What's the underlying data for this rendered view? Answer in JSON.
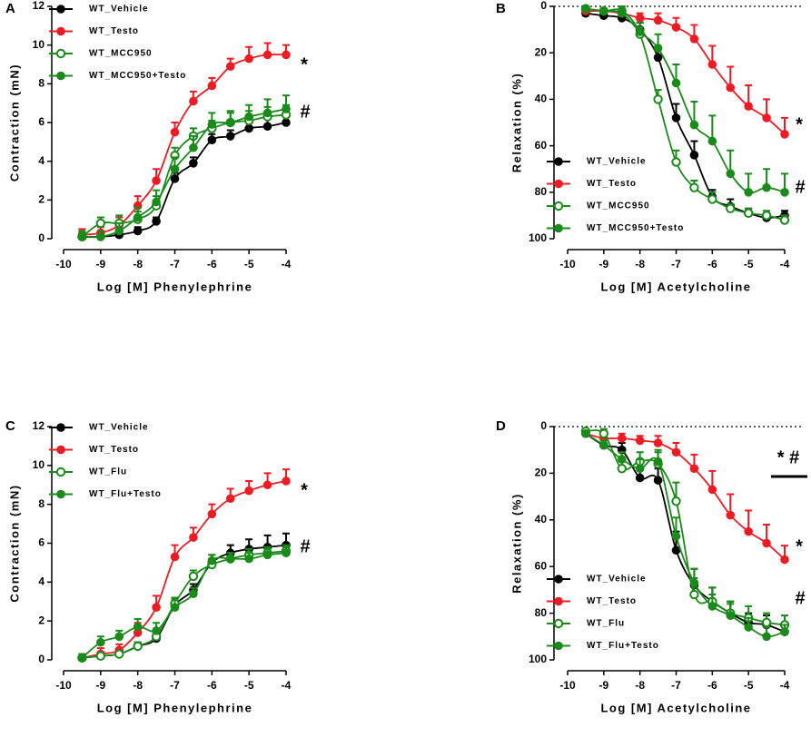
{
  "chart_data": [
    {
      "type": "line",
      "panel": "A",
      "xlabel": "Log [M] Phenylephrine",
      "ylabel": "Contraction (mN)",
      "xlim": [
        -10,
        -4
      ],
      "xticks": [
        -10,
        -9,
        -8,
        -7,
        -6,
        -5,
        -4
      ],
      "ylim": [
        0,
        12
      ],
      "yticks": [
        0,
        2,
        4,
        6,
        8,
        10,
        12
      ],
      "y_inverted": false,
      "x": [
        -9.5,
        -9,
        -8.5,
        -8,
        -7.5,
        -7,
        -6.5,
        -6,
        -5.5,
        -5,
        -4.5,
        -4
      ],
      "series": [
        {
          "name": "WT_Vehicle",
          "color": "#000000",
          "marker": "filled",
          "values": [
            0.1,
            0.1,
            0.2,
            0.4,
            0.9,
            3.1,
            3.9,
            5.1,
            5.3,
            5.7,
            5.8,
            6.0
          ],
          "errors": [
            0.1,
            0.1,
            0.1,
            0.2,
            0.2,
            0.3,
            0.3,
            0.3,
            0.3,
            0.3,
            0.4,
            0.4
          ]
        },
        {
          "name": "WT_Testo",
          "color": "#ed1c24",
          "marker": "filled",
          "values": [
            0.2,
            0.3,
            0.7,
            1.7,
            3.0,
            5.5,
            7.1,
            7.9,
            8.9,
            9.3,
            9.5,
            9.5
          ],
          "errors": [
            0.3,
            0.3,
            0.4,
            0.5,
            0.6,
            0.5,
            0.5,
            0.4,
            0.4,
            0.6,
            0.6,
            0.5
          ]
        },
        {
          "name": "WT_MCC950",
          "color": "#1a8a1a",
          "marker": "open",
          "values": [
            0.1,
            0.8,
            0.8,
            1.0,
            1.7,
            4.3,
            5.3,
            5.7,
            6.0,
            6.1,
            6.3,
            6.4
          ],
          "errors": [
            0.3,
            0.3,
            0.4,
            0.4,
            0.5,
            0.4,
            0.4,
            0.4,
            0.5,
            0.5,
            0.5,
            0.5
          ]
        },
        {
          "name": "WT_MCC950+Testo",
          "color": "#1a8a1a",
          "marker": "filled",
          "values": [
            0.1,
            0.1,
            0.4,
            1.1,
            1.9,
            3.6,
            4.7,
            5.9,
            6.0,
            6.3,
            6.5,
            6.7
          ],
          "errors": [
            0.2,
            0.3,
            0.4,
            0.5,
            0.6,
            0.6,
            0.6,
            0.6,
            0.6,
            0.6,
            0.7,
            0.7
          ]
        }
      ],
      "annotations": [
        "*",
        "#"
      ]
    },
    {
      "type": "line",
      "panel": "B",
      "xlabel": "Log [M] Acetylcholine",
      "ylabel": "Relaxation (%)",
      "xlim": [
        -10,
        -4
      ],
      "xticks": [
        -10,
        -9,
        -8,
        -7,
        -6,
        -5,
        -4
      ],
      "ylim": [
        0,
        100
      ],
      "yticks": [
        0,
        20,
        40,
        60,
        80,
        100
      ],
      "y_inverted": true,
      "x": [
        -9.5,
        -9,
        -8.5,
        -8,
        -7.5,
        -7,
        -6.5,
        -6,
        -5.5,
        -5,
        -4.5,
        -4
      ],
      "series": [
        {
          "name": "WT_Vehicle",
          "color": "#000000",
          "marker": "filled",
          "values": [
            3,
            4,
            5,
            10,
            22,
            48,
            64,
            82,
            86,
            89,
            91,
            90
          ],
          "errors": [
            1,
            1,
            2,
            3,
            4,
            6,
            6,
            3,
            3,
            2,
            2,
            2
          ]
        },
        {
          "name": "WT_Testo",
          "color": "#ed1c24",
          "marker": "filled",
          "values": [
            2,
            2,
            3,
            5,
            6,
            9,
            14,
            25,
            35,
            43,
            48,
            55
          ],
          "errors": [
            1,
            1,
            2,
            2,
            3,
            4,
            6,
            8,
            9,
            9,
            8,
            7
          ]
        },
        {
          "name": "WT_MCC950",
          "color": "#1a8a1a",
          "marker": "open",
          "values": [
            1,
            2,
            2,
            12,
            40,
            67,
            78,
            83,
            87,
            89,
            90,
            92
          ],
          "errors": [
            1,
            1,
            2,
            3,
            4,
            5,
            3,
            3,
            2,
            2,
            2,
            2
          ]
        },
        {
          "name": "WT_MCC950+Testo",
          "color": "#1a8a1a",
          "marker": "filled",
          "values": [
            1,
            2,
            3,
            11,
            18,
            33,
            51,
            58,
            72,
            80,
            78,
            80
          ],
          "errors": [
            1,
            1,
            2,
            4,
            6,
            8,
            10,
            11,
            10,
            8,
            8,
            8
          ]
        }
      ],
      "annotations": [
        "*",
        "#"
      ]
    },
    {
      "type": "line",
      "panel": "C",
      "xlabel": "Log [M] Phenylephrine",
      "ylabel": "Contraction (mN)",
      "xlim": [
        -10,
        -4
      ],
      "xticks": [
        -10,
        -9,
        -8,
        -7,
        -6,
        -5,
        -4
      ],
      "ylim": [
        0,
        12
      ],
      "yticks": [
        0,
        2,
        4,
        6,
        8,
        10,
        12
      ],
      "y_inverted": false,
      "x": [
        -9.5,
        -9,
        -8.5,
        -8,
        -7.5,
        -7,
        -6.5,
        -6,
        -5.5,
        -5,
        -4.5,
        -4
      ],
      "series": [
        {
          "name": "WT_Vehicle",
          "color": "#000000",
          "marker": "filled",
          "values": [
            0.1,
            0.2,
            0.3,
            0.7,
            1.1,
            2.8,
            3.6,
            5.0,
            5.5,
            5.7,
            5.8,
            5.9
          ],
          "errors": [
            0.1,
            0.1,
            0.2,
            0.2,
            0.3,
            0.3,
            0.3,
            0.4,
            0.4,
            0.5,
            0.6,
            0.6
          ]
        },
        {
          "name": "WT_Testo",
          "color": "#ed1c24",
          "marker": "filled",
          "values": [
            0.1,
            0.3,
            0.5,
            1.4,
            2.7,
            5.3,
            6.3,
            7.5,
            8.3,
            8.7,
            9.0,
            9.2
          ],
          "errors": [
            0.2,
            0.3,
            0.3,
            0.5,
            0.6,
            0.6,
            0.5,
            0.5,
            0.5,
            0.5,
            0.6,
            0.6
          ]
        },
        {
          "name": "WT_Flu",
          "color": "#1a8a1a",
          "marker": "open",
          "values": [
            0.1,
            0.2,
            0.3,
            0.7,
            1.2,
            2.9,
            4.3,
            4.9,
            5.2,
            5.4,
            5.5,
            5.6
          ],
          "errors": [
            0.1,
            0.1,
            0.1,
            0.2,
            0.2,
            0.3,
            0.3,
            0.3,
            0.3,
            0.3,
            0.3,
            0.3
          ]
        },
        {
          "name": "WT_Flu+Testo",
          "color": "#1a8a1a",
          "marker": "filled",
          "values": [
            0.1,
            0.9,
            1.2,
            1.7,
            1.5,
            2.7,
            3.4,
            5.1,
            5.2,
            5.2,
            5.4,
            5.5
          ],
          "errors": [
            0.2,
            0.3,
            0.3,
            0.4,
            0.4,
            0.4,
            0.3,
            0.3,
            0.3,
            0.3,
            0.3,
            0.3
          ]
        }
      ],
      "annotations": [
        "*",
        "#"
      ]
    },
    {
      "type": "line",
      "panel": "D",
      "xlabel": "Log [M] Acetylcholine",
      "ylabel": "Relaxation (%)",
      "xlim": [
        -10,
        -4
      ],
      "xticks": [
        -10,
        -9,
        -8,
        -7,
        -6,
        -5,
        -4
      ],
      "ylim": [
        0,
        100
      ],
      "yticks": [
        0,
        20,
        40,
        60,
        80,
        100
      ],
      "y_inverted": true,
      "x": [
        -9.5,
        -9,
        -8.5,
        -8,
        -7.5,
        -7,
        -6.5,
        -6,
        -5.5,
        -5,
        -4.5,
        -4
      ],
      "series": [
        {
          "name": "WT_Vehicle",
          "color": "#000000",
          "marker": "filled",
          "values": [
            3,
            8,
            10,
            22,
            23,
            53,
            68,
            75,
            80,
            84,
            85,
            88
          ],
          "errors": [
            1,
            2,
            3,
            4,
            5,
            8,
            7,
            6,
            5,
            4,
            4,
            3
          ]
        },
        {
          "name": "WT_Testo",
          "color": "#ed1c24",
          "marker": "filled",
          "values": [
            3,
            5,
            5,
            6,
            7,
            11,
            18,
            27,
            38,
            45,
            50,
            57
          ],
          "errors": [
            1,
            1,
            2,
            2,
            3,
            4,
            6,
            8,
            9,
            9,
            8,
            6
          ]
        },
        {
          "name": "WT_Flu",
          "color": "#1a8a1a",
          "marker": "open",
          "values": [
            2,
            3,
            18,
            15,
            16,
            32,
            72,
            75,
            80,
            82,
            84,
            85
          ],
          "errors": [
            1,
            2,
            4,
            4,
            5,
            8,
            7,
            6,
            5,
            5,
            4,
            4
          ]
        },
        {
          "name": "WT_Flu+Testo",
          "color": "#1a8a1a",
          "marker": "filled",
          "values": [
            3,
            8,
            14,
            18,
            15,
            47,
            67,
            77,
            81,
            86,
            90,
            88
          ],
          "errors": [
            1,
            2,
            3,
            4,
            5,
            8,
            6,
            5,
            5,
            4,
            4,
            3
          ]
        }
      ],
      "annotations": [
        "* #",
        "*",
        "#"
      ]
    }
  ]
}
